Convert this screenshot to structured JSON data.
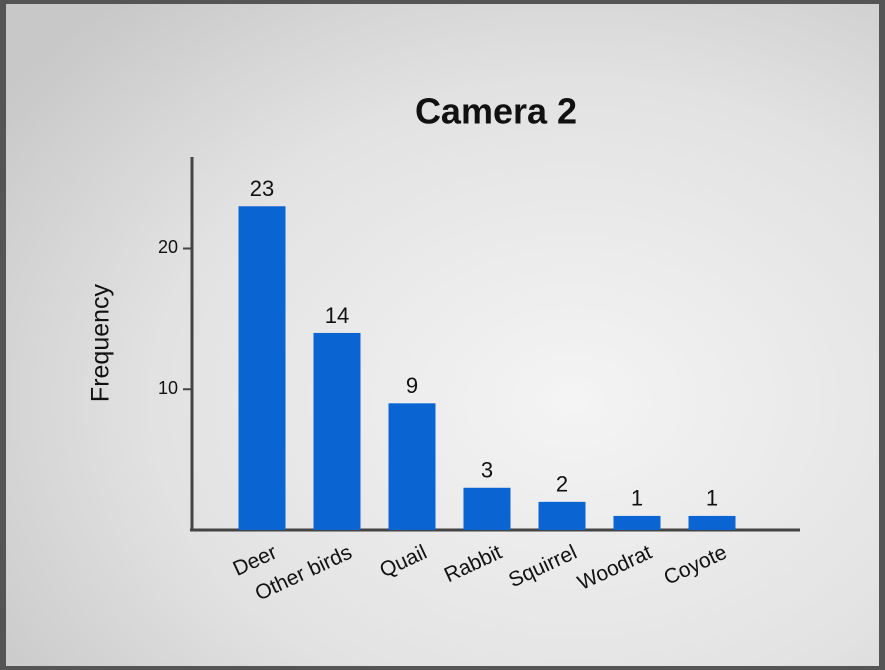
{
  "chart_data": {
    "type": "bar",
    "title": "Camera 2",
    "y_label": "Frequency",
    "categories": [
      "Deer",
      "Other birds",
      "Quail",
      "Rabbit",
      "Squirrel",
      "Woodrat",
      "Coyote"
    ],
    "values": [
      23,
      14,
      9,
      3,
      2,
      1,
      1
    ],
    "color": "#0a64d2",
    "ylim": [
      0,
      26.5
    ],
    "yticks": [
      10,
      20
    ],
    "grid": false
  }
}
